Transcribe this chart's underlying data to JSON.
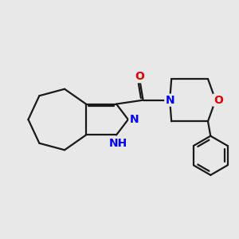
{
  "background_color": "#e8e8e8",
  "bond_color": "#1a1a1a",
  "bond_width": 1.6,
  "dbo": 0.055,
  "atom_colors": {
    "N": "#0000ee",
    "O": "#dd0000",
    "H": "#008080",
    "C": "#1a1a1a"
  },
  "font_size": 10,
  "xlim": [
    -0.5,
    6.8
  ],
  "ylim": [
    0.2,
    5.2
  ]
}
